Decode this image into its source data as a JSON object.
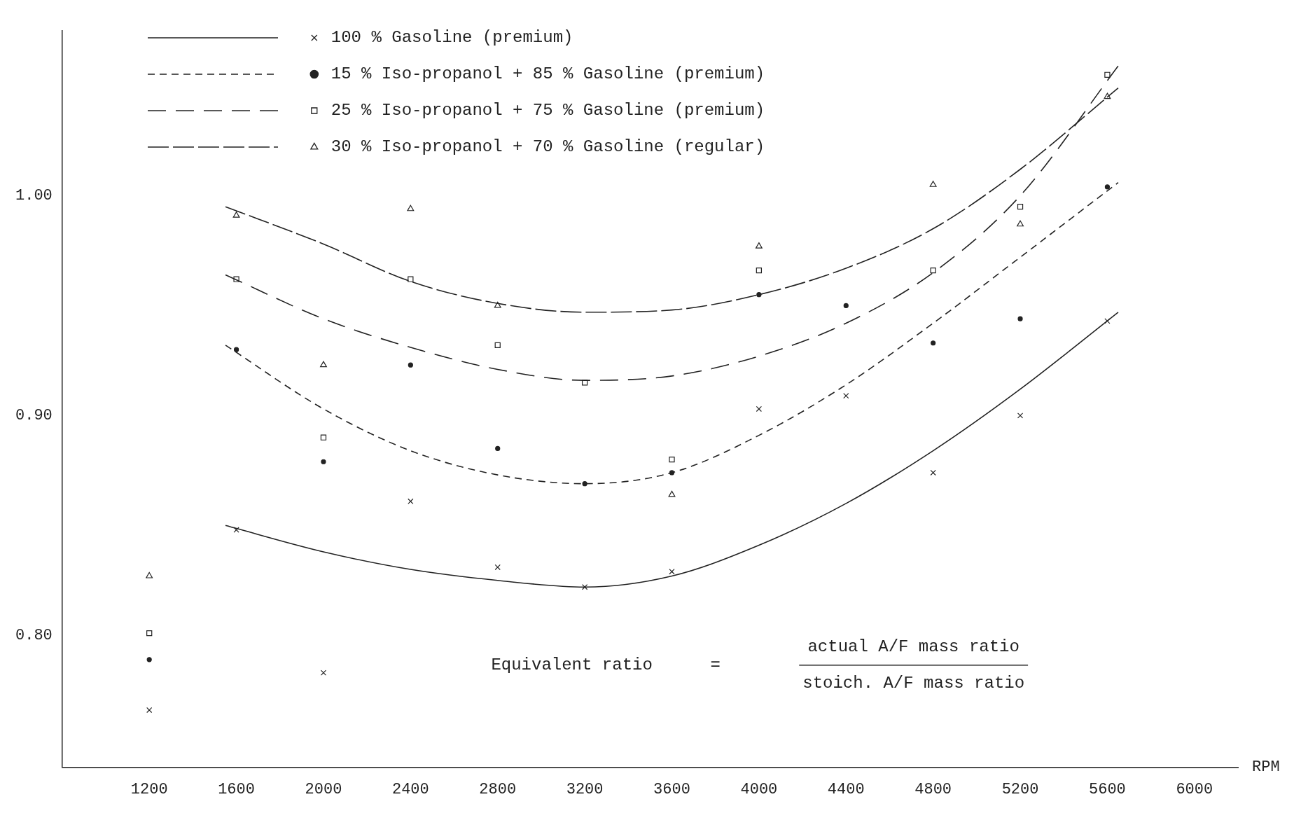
{
  "chart_data": {
    "type": "scatter",
    "xlabel": "RPM",
    "xlim": [
      800,
      6200
    ],
    "ylim": [
      0.74,
      1.075
    ],
    "xticks": [
      1200,
      1600,
      2000,
      2400,
      2800,
      3200,
      3600,
      4000,
      4400,
      4800,
      5200,
      5600,
      6000
    ],
    "yticks": [
      {
        "value": 0.8,
        "label": "0.80"
      },
      {
        "value": 0.9,
        "label": "0.90"
      },
      {
        "value": 1.0,
        "label": "1.00"
      }
    ],
    "grid": false,
    "legend": "top",
    "annotations": [
      "Equivalent ratio",
      "=",
      "actual A/F mass ratio",
      "stoich. A/F mass ratio"
    ],
    "series": [
      {
        "name": "100 % Gasoline (premium)",
        "type": "scatter",
        "marker": "cross",
        "color": "#222222",
        "x": [
          1200,
          1600,
          2000,
          2400,
          2800,
          3200,
          3600,
          4000,
          4400,
          4800,
          5200,
          5600
        ],
        "values": [
          0.766,
          0.848,
          0.783,
          0.861,
          0.831,
          0.822,
          0.829,
          0.903,
          0.909,
          0.874,
          0.9,
          0.943
        ]
      },
      {
        "type": "line",
        "line_style": "solid",
        "color": "#222222",
        "x": [
          1550,
          2000,
          2400,
          2800,
          3200,
          3600,
          4000,
          4400,
          4800,
          5200,
          5650
        ],
        "values": [
          0.85,
          0.838,
          0.83,
          0.825,
          0.822,
          0.827,
          0.841,
          0.86,
          0.884,
          0.912,
          0.947
        ]
      },
      {
        "name": "15 % Iso-propanol + 85 % Gasoline (premium)",
        "type": "scatter",
        "marker": "circle",
        "color": "#222222",
        "x": [
          1200,
          1600,
          2000,
          2400,
          2800,
          3200,
          3600,
          4000,
          4400,
          4800,
          5200,
          5600
        ],
        "values": [
          0.789,
          0.93,
          0.879,
          0.923,
          0.885,
          0.869,
          0.874,
          0.955,
          0.95,
          0.933,
          0.944,
          1.004
        ]
      },
      {
        "type": "line",
        "line_style": "dashed",
        "color": "#222222",
        "x": [
          1550,
          2000,
          2400,
          2800,
          3200,
          3600,
          4000,
          4400,
          4800,
          5200,
          5650
        ],
        "values": [
          0.932,
          0.903,
          0.884,
          0.873,
          0.869,
          0.874,
          0.891,
          0.914,
          0.942,
          0.972,
          1.006
        ]
      },
      {
        "name": "25 % Iso-propanol + 75 % Gasoline (premium)",
        "type": "scatter",
        "marker": "square",
        "color": "#222222",
        "x": [
          1200,
          1600,
          2000,
          2400,
          2800,
          3200,
          3600,
          4000,
          4800,
          5200,
          5600
        ],
        "values": [
          0.801,
          0.962,
          0.89,
          0.962,
          0.932,
          0.915,
          0.88,
          0.966,
          0.966,
          0.995,
          1.055
        ]
      },
      {
        "type": "line",
        "line_style": "dashed",
        "color": "#222222",
        "x": [
          1550,
          2000,
          2400,
          2800,
          3200,
          3600,
          4000,
          4400,
          4800,
          5200,
          5650
        ],
        "values": [
          0.964,
          0.944,
          0.931,
          0.921,
          0.916,
          0.918,
          0.927,
          0.942,
          0.965,
          1.0,
          1.059
        ]
      },
      {
        "name": "30 % Iso-propanol + 70 % Gasoline (regular)",
        "type": "scatter",
        "marker": "triangle",
        "color": "#222222",
        "x": [
          1200,
          1600,
          2000,
          2400,
          2800,
          3600,
          4000,
          4800,
          5200,
          5600
        ],
        "values": [
          0.827,
          0.991,
          0.923,
          0.994,
          0.95,
          0.864,
          0.977,
          1.005,
          0.987,
          1.045
        ]
      },
      {
        "type": "line",
        "line_style": "dashed",
        "color": "#222222",
        "x": [
          1550,
          2000,
          2400,
          2800,
          3200,
          3600,
          4000,
          4400,
          4800,
          5200,
          5650
        ],
        "values": [
          0.995,
          0.978,
          0.961,
          0.951,
          0.947,
          0.948,
          0.955,
          0.967,
          0.985,
          1.012,
          1.049
        ]
      }
    ]
  }
}
